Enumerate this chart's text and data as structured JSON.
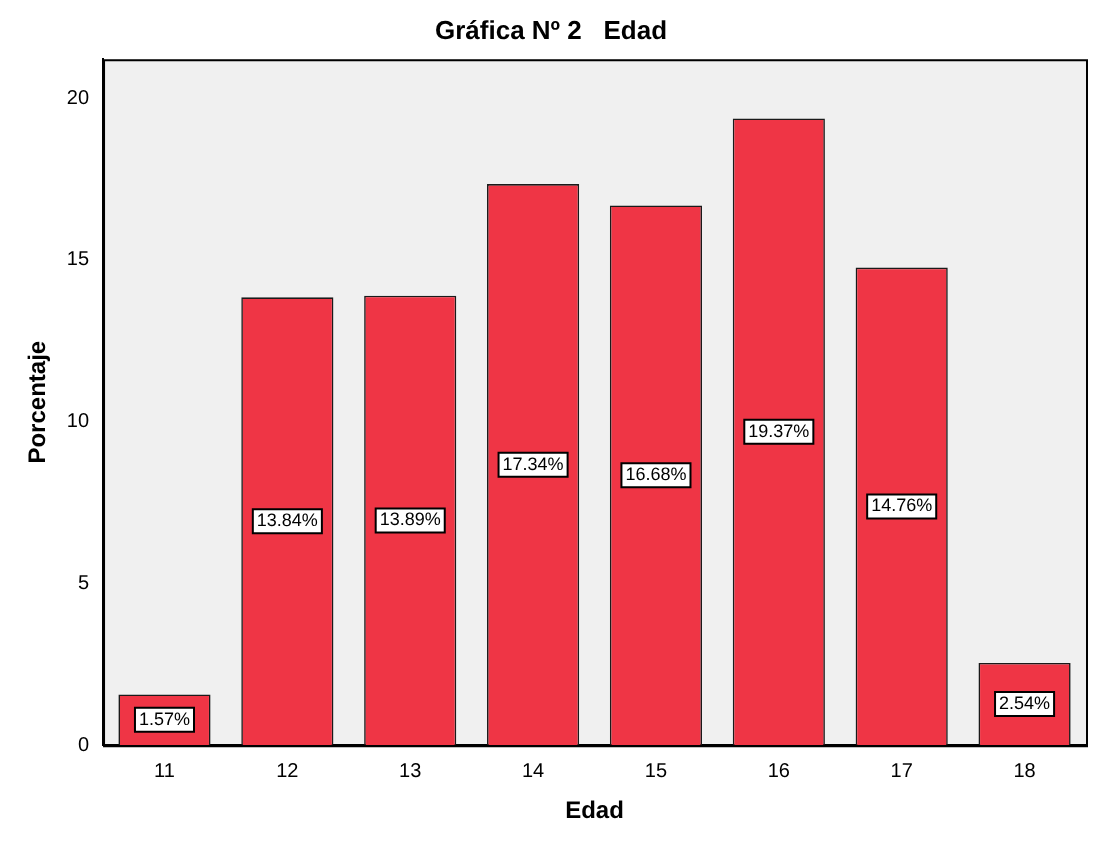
{
  "chart_data": {
    "type": "bar",
    "title": "Gráfica Nº 2   Edad",
    "xlabel": "Edad",
    "ylabel": "Porcentaje",
    "categories": [
      "11",
      "12",
      "13",
      "14",
      "15",
      "16",
      "17",
      "18"
    ],
    "values": [
      1.57,
      13.84,
      13.89,
      17.34,
      16.68,
      19.37,
      14.76,
      2.54
    ],
    "value_labels": [
      "1.57%",
      "13.84%",
      "13.89%",
      "17.34%",
      "16.68%",
      "19.37%",
      "14.76%",
      "2.54%"
    ],
    "color": "#ef3545",
    "ylim": [
      0,
      21.2
    ],
    "yticks": [
      0,
      5,
      10,
      15,
      20
    ],
    "grid": false,
    "legend": false
  }
}
